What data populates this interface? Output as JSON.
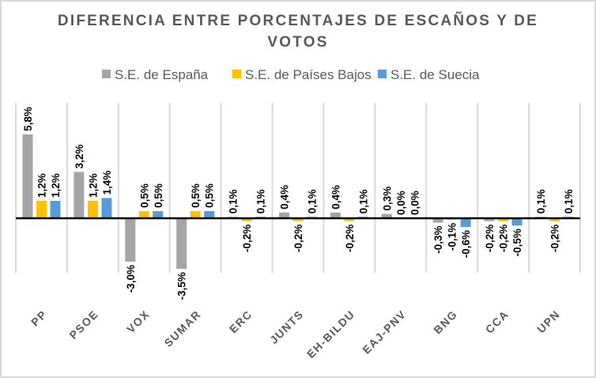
{
  "chart_data": {
    "type": "bar",
    "title_lines": [
      "DIFERENCIA ENTRE PORCENTAJES DE ESCAÑOS Y DE",
      "VOTOS"
    ],
    "xlabel": "",
    "ylabel": "",
    "ylim": [
      -4.0,
      7.8
    ],
    "grid": "vertical-category-separators",
    "legend_position": "top",
    "categories": [
      "PP",
      "PSOE",
      "VOX",
      "SUMAR",
      "ERC",
      "JUNTS",
      "EH-BILDU",
      "EAJ-PNV",
      "BNG",
      "CCA",
      "UPN"
    ],
    "series": [
      {
        "name": "S.E. de España",
        "color": "#A5A5A5",
        "values": [
          5.8,
          3.2,
          -3.0,
          -3.5,
          0.1,
          0.4,
          0.4,
          0.3,
          -0.3,
          -0.2,
          0.1
        ],
        "labels": [
          "5,8%",
          "3,2%",
          "-3,0%",
          "-3,5%",
          "0,1%",
          "0,4%",
          "0,4%",
          "0,3%",
          "-0,3%",
          "-0,2%",
          "0,1%"
        ]
      },
      {
        "name": "S.E. de Países Bajos",
        "color": "#FFC000",
        "values": [
          1.2,
          1.2,
          0.5,
          0.5,
          -0.2,
          -0.2,
          -0.2,
          0.0,
          -0.1,
          -0.2,
          -0.2
        ],
        "labels": [
          "1,2%",
          "1,2%",
          "0,5%",
          "0,5%",
          "-0,2%",
          "-0,2%",
          "-0,2%",
          "0,0%",
          "-0,1%",
          "-0,2%",
          "-0,2%"
        ]
      },
      {
        "name": "S.E. de Suecia",
        "color": "#5B9BD5",
        "values": [
          1.2,
          1.4,
          0.5,
          0.5,
          0.1,
          0.1,
          0.1,
          0.0,
          -0.6,
          -0.5,
          0.1
        ],
        "labels": [
          "1,2%",
          "1,4%",
          "0,5%",
          "0,5%",
          "0,1%",
          "0,1%",
          "0,1%",
          "0,0%",
          "-0,6%",
          "-0,5%",
          "0,1%"
        ]
      }
    ]
  }
}
